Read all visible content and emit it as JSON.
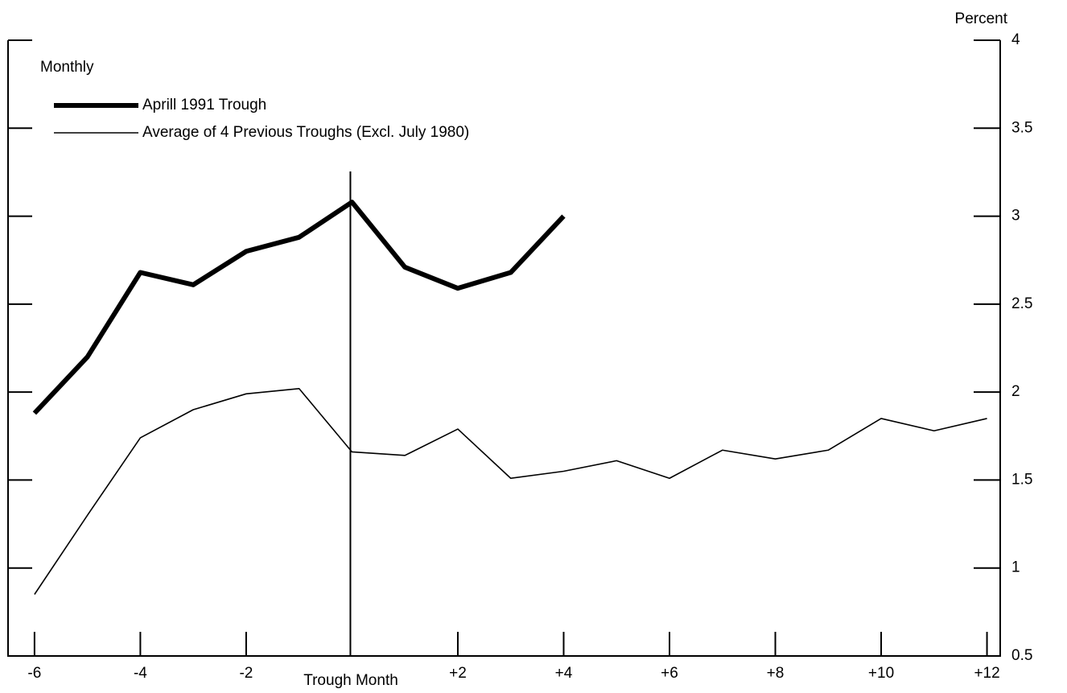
{
  "chart_data": {
    "type": "line",
    "annotation": "Monthly",
    "y_label": "Percent",
    "x_label": "Trough Month",
    "series": [
      {
        "name": "Aprill 1991 Trough",
        "color": "#000000",
        "width": 6,
        "x": [
          -6,
          -5,
          -4,
          -3,
          -2,
          -1,
          0,
          1,
          2,
          3,
          4
        ],
        "values": [
          1.88,
          2.2,
          2.68,
          2.61,
          2.8,
          2.88,
          3.08,
          2.71,
          2.59,
          2.68,
          3.0
        ]
      },
      {
        "name": "Average of 4 Previous Troughs (Excl. July 1980)",
        "color": "#000000",
        "width": 1.6,
        "x": [
          -6,
          -5,
          -4,
          -3,
          -2,
          -1,
          0,
          1,
          2,
          3,
          4,
          5,
          6,
          7,
          8,
          9,
          10,
          11,
          12
        ],
        "values": [
          0.85,
          1.3,
          1.74,
          1.9,
          1.99,
          2.02,
          1.66,
          1.64,
          1.79,
          1.51,
          1.55,
          1.61,
          1.51,
          1.67,
          1.62,
          1.67,
          1.85,
          1.78,
          1.85
        ]
      }
    ],
    "xlim": [
      -6.5,
      12.25
    ],
    "xticks": [
      -6,
      -4,
      -2,
      {
        "value": 2,
        "label": "+2"
      },
      {
        "value": 4,
        "label": "+4"
      },
      {
        "value": 6,
        "label": "+6"
      },
      {
        "value": 8,
        "label": "+8"
      },
      {
        "value": 10,
        "label": "+10"
      },
      {
        "value": 12,
        "label": "+12"
      }
    ],
    "ylim": [
      0.5,
      4
    ],
    "yticks": [
      0.5,
      1,
      1.5,
      2,
      2.5,
      3,
      3.5,
      4
    ],
    "grid": false
  }
}
